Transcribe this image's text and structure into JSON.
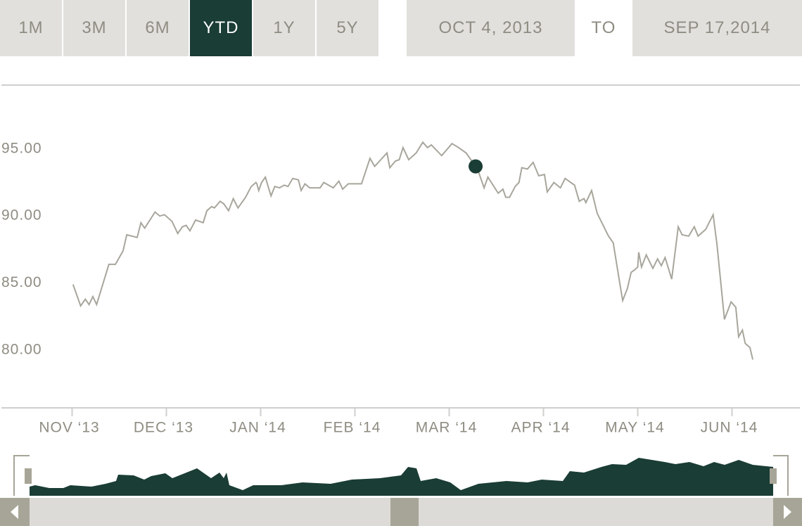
{
  "controls": {
    "ranges": [
      "1M",
      "3M",
      "6M",
      "YTD",
      "1Y",
      "5Y"
    ],
    "active": "YTD",
    "from": "OCT 4, 2013",
    "to_label": "TO",
    "to": "SEP 17,2014"
  },
  "chart_data": {
    "type": "line",
    "xlim": [
      -0.75,
      7.72
    ],
    "xticks": [
      {
        "value": 0,
        "label": "NOV ‘13"
      },
      {
        "value": 1,
        "label": "DEC ‘13"
      },
      {
        "value": 2,
        "label": "JAN ‘14"
      },
      {
        "value": 3,
        "label": "FEB ‘14"
      },
      {
        "value": 4,
        "label": "MAR ‘14"
      },
      {
        "value": 5,
        "label": "APR ‘14"
      },
      {
        "value": 6,
        "label": "MAY ‘14"
      },
      {
        "value": 7,
        "label": "JUN ‘14"
      }
    ],
    "ylim": [
      75.7,
      99.76
    ],
    "yticks": [
      {
        "value": 80,
        "label": "80.00"
      },
      {
        "value": 85,
        "label": "85.00"
      },
      {
        "value": 90,
        "label": "90.00"
      },
      {
        "value": 95,
        "label": "95.00"
      }
    ],
    "series": [
      {
        "color": "#a8a69c",
        "x": [
          0.01,
          0.09,
          0.14,
          0.18,
          0.22,
          0.26,
          0.39,
          0.46,
          0.54,
          0.58,
          0.69,
          0.73,
          0.77,
          0.88,
          0.93,
          0.98,
          1.06,
          1.12,
          1.17,
          1.21,
          1.25,
          1.31,
          1.39,
          1.43,
          1.48,
          1.51,
          1.57,
          1.61,
          1.66,
          1.71,
          1.76,
          1.84,
          1.9,
          1.95,
          1.96,
          1.98,
          2.01,
          2.05,
          2.11,
          2.15,
          2.2,
          2.25,
          2.29,
          2.34,
          2.4,
          2.43,
          2.47,
          2.52,
          2.63,
          2.67,
          2.77,
          2.83,
          2.87,
          2.93,
          3.07,
          3.16,
          3.21,
          3.34,
          3.37,
          3.43,
          3.47,
          3.51,
          3.57,
          3.65,
          3.72,
          3.77,
          3.81,
          3.92,
          4.03,
          4.1,
          4.18,
          4.25,
          4.31,
          4.37,
          4.41,
          4.52,
          4.57,
          4.6,
          4.64,
          4.7,
          4.74,
          4.77,
          4.83,
          4.89,
          4.95,
          5.01,
          5.04,
          5.11,
          5.18,
          5.23,
          5.33,
          5.38,
          5.43,
          5.45,
          5.51,
          5.57,
          5.69,
          5.74,
          5.8,
          5.84,
          5.89,
          5.93,
          5.97,
          6.0,
          6.01,
          6.04,
          6.09,
          6.16,
          6.21,
          6.25,
          6.29,
          6.36,
          6.43,
          6.47,
          6.54,
          6.6,
          6.64,
          6.72,
          6.8,
          6.84,
          6.92,
          6.99,
          7.04,
          7.07,
          7.11,
          7.14,
          7.19,
          7.22
        ],
        "values": [
          84.9,
          83.3,
          83.8,
          83.4,
          84.0,
          83.4,
          86.4,
          86.4,
          87.4,
          88.6,
          88.4,
          89.5,
          89.1,
          90.3,
          90.0,
          90.1,
          89.6,
          88.7,
          89.2,
          89.3,
          88.9,
          89.7,
          89.5,
          90.4,
          90.7,
          90.6,
          91.1,
          90.9,
          90.4,
          91.3,
          90.6,
          91.4,
          92.2,
          92.5,
          92.4,
          91.9,
          92.5,
          92.9,
          91.5,
          92.2,
          92.1,
          92.3,
          92.2,
          92.8,
          92.7,
          91.9,
          92.4,
          92.1,
          92.1,
          92.5,
          92.1,
          92.6,
          92.0,
          92.4,
          92.4,
          94.3,
          93.7,
          94.7,
          93.6,
          94.1,
          94.2,
          95.1,
          94.2,
          94.7,
          95.5,
          95.1,
          95.3,
          94.5,
          95.4,
          95.1,
          94.7,
          94.0,
          93.3,
          92.1,
          92.9,
          91.7,
          92.0,
          91.4,
          91.4,
          92.2,
          92.5,
          93.6,
          93.5,
          94.0,
          93.0,
          93.1,
          91.8,
          92.5,
          92.1,
          92.8,
          92.3,
          91.1,
          91.3,
          91.0,
          91.9,
          90.2,
          88.5,
          88.0,
          85.4,
          83.7,
          84.6,
          85.8,
          86.0,
          86.2,
          87.3,
          86.2,
          87.1,
          86.1,
          86.8,
          86.3,
          86.9,
          85.3,
          89.2,
          88.6,
          88.5,
          89.2,
          88.5,
          89.0,
          90.1,
          87.9,
          82.3,
          83.6,
          83.2,
          81.0,
          81.5,
          80.5,
          80.2,
          79.3
        ]
      }
    ],
    "marker": {
      "x": 4.28,
      "y": 93.7,
      "color": "#1a3d35"
    }
  }
}
